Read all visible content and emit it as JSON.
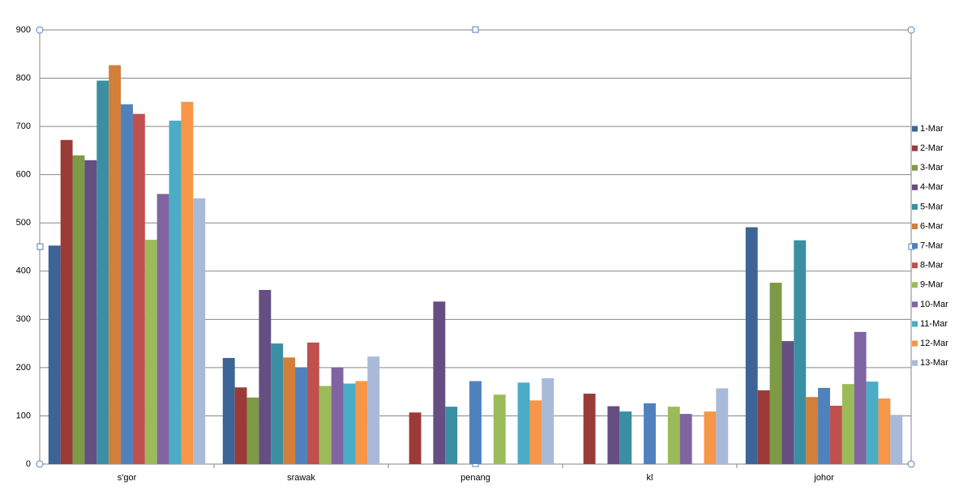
{
  "chart_data": {
    "type": "bar",
    "categories": [
      "s'gor",
      "srawak",
      "penang",
      "kl",
      "johor"
    ],
    "series": [
      {
        "name": "1-Mar",
        "color": "#3d6496",
        "values": [
          453,
          220,
          null,
          null,
          491
        ]
      },
      {
        "name": "2-Mar",
        "color": "#9b3b38",
        "values": [
          672,
          159,
          107,
          146,
          153
        ]
      },
      {
        "name": "3-Mar",
        "color": "#7d9a47",
        "values": [
          640,
          138,
          null,
          null,
          376
        ]
      },
      {
        "name": "4-Mar",
        "color": "#654e82",
        "values": [
          630,
          361,
          337,
          120,
          255
        ]
      },
      {
        "name": "5-Mar",
        "color": "#3a8fa3",
        "values": [
          795,
          250,
          119,
          109,
          464
        ]
      },
      {
        "name": "6-Mar",
        "color": "#d27f3a",
        "values": [
          827,
          221,
          null,
          null,
          139
        ]
      },
      {
        "name": "7-Mar",
        "color": "#4f81bd",
        "values": [
          746,
          200,
          172,
          126,
          158
        ]
      },
      {
        "name": "8-Mar",
        "color": "#c0504d",
        "values": [
          726,
          252,
          null,
          null,
          121
        ]
      },
      {
        "name": "9-Mar",
        "color": "#9bbb59",
        "values": [
          465,
          162,
          144,
          119,
          166
        ]
      },
      {
        "name": "10-Mar",
        "color": "#8064a2",
        "values": [
          560,
          200,
          null,
          104,
          274
        ]
      },
      {
        "name": "11-Mar",
        "color": "#4bacc6",
        "values": [
          712,
          167,
          169,
          null,
          171
        ]
      },
      {
        "name": "12-Mar",
        "color": "#f79646",
        "values": [
          751,
          172,
          132,
          109,
          136
        ]
      },
      {
        "name": "13-Mar",
        "color": "#a9b9d8",
        "values": [
          551,
          223,
          178,
          157,
          102
        ]
      }
    ],
    "ylim": [
      0,
      900
    ],
    "yticks": [
      0,
      100,
      200,
      300,
      400,
      500,
      600,
      700,
      800,
      900
    ],
    "grid": true,
    "legend": "right"
  }
}
